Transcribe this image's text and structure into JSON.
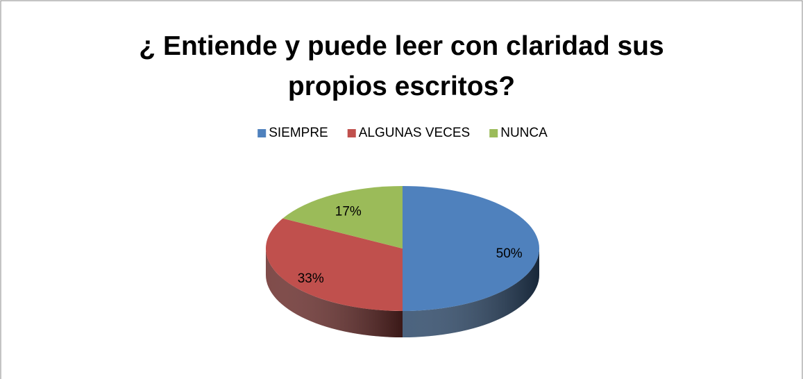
{
  "chart_data": {
    "type": "pie",
    "title": "¿ Entiende y puede leer con claridad sus propios escritos?",
    "categories": [
      "SIEMPRE",
      "ALGUNAS VECES",
      "NUNCA"
    ],
    "values": [
      50,
      33,
      17
    ],
    "value_labels": [
      "50%",
      "33%",
      "17%"
    ],
    "colors": [
      "#4f81bd",
      "#c0504d",
      "#9bbb59"
    ],
    "legend": "top"
  }
}
